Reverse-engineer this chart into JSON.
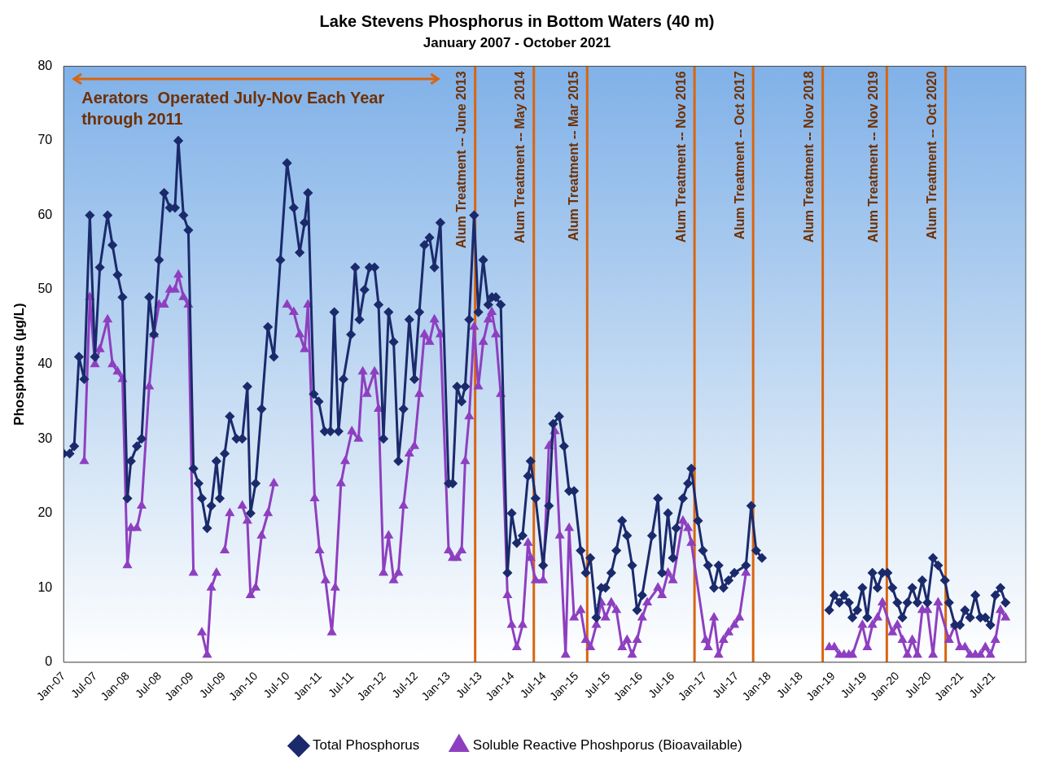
{
  "chart_data": {
    "type": "line",
    "title": "Lake Stevens Phosphorus in Bottom Waters (40 m)",
    "subtitle": "January 2007 - October 2021",
    "ylabel": "Phosphorus (µg/L)",
    "xlim": [
      "2007-01-01",
      "2021-12-31"
    ],
    "xticks": [
      {
        "value": "2007-01",
        "label": "Jan-07"
      },
      {
        "value": "2007-07",
        "label": "Jul-07"
      },
      {
        "value": "2008-01",
        "label": "Jan-08"
      },
      {
        "value": "2008-07",
        "label": "Jul-08"
      },
      {
        "value": "2009-01",
        "label": "Jan-09"
      },
      {
        "value": "2009-07",
        "label": "Jul-09"
      },
      {
        "value": "2010-01",
        "label": "Jan-10"
      },
      {
        "value": "2010-07",
        "label": "Jul-10"
      },
      {
        "value": "2011-01",
        "label": "Jan-11"
      },
      {
        "value": "2011-07",
        "label": "Jul-11"
      },
      {
        "value": "2012-01",
        "label": "Jan-12"
      },
      {
        "value": "2012-07",
        "label": "Jul-12"
      },
      {
        "value": "2013-01",
        "label": "Jan-13"
      },
      {
        "value": "2013-07",
        "label": "Jul-13"
      },
      {
        "value": "2014-01",
        "label": "Jan-14"
      },
      {
        "value": "2014-07",
        "label": "Jul-14"
      },
      {
        "value": "2015-01",
        "label": "Jan-15"
      },
      {
        "value": "2015-07",
        "label": "Jul-15"
      },
      {
        "value": "2016-01",
        "label": "Jan-16"
      },
      {
        "value": "2016-07",
        "label": "Jul-16"
      },
      {
        "value": "2017-01",
        "label": "Jan-17"
      },
      {
        "value": "2017-07",
        "label": "Jul-17"
      },
      {
        "value": "2018-01",
        "label": "Jan-18"
      },
      {
        "value": "2018-07",
        "label": "Jul-18"
      },
      {
        "value": "2019-01",
        "label": "Jan-19"
      },
      {
        "value": "2019-07",
        "label": "Jul-19"
      },
      {
        "value": "2020-01",
        "label": "Jan-20"
      },
      {
        "value": "2020-07",
        "label": "Jul-20"
      },
      {
        "value": "2021-01",
        "label": "Jan-21"
      },
      {
        "value": "2021-07",
        "label": "Jul-21"
      }
    ],
    "ylim": [
      0,
      80
    ],
    "yticks": [
      0,
      10,
      20,
      30,
      40,
      50,
      60,
      70,
      80
    ],
    "grid": false,
    "legend": "bottom",
    "series": [
      {
        "name": "Total Phosphorus",
        "color": "#1b2a6b",
        "marker": "diamond",
        "x": [
          "2007-01-01",
          "2007-02-04",
          "2007-03-02",
          "2007-03-29",
          "2007-04-28",
          "2007-05-30",
          "2007-06-28",
          "2007-07-26",
          "2007-09-08",
          "2007-10-06",
          "2007-11-04",
          "2007-12-02",
          "2007-12-30",
          "2008-01-19",
          "2008-02-22",
          "2008-03-20",
          "2008-05-02",
          "2008-05-29",
          "2008-06-27",
          "2008-07-26",
          "2008-08-28",
          "2008-09-26",
          "2008-10-15",
          "2008-11-13",
          "2008-12-11",
          "2009-01-09",
          "2009-02-07",
          "2009-02-26",
          "2009-03-28",
          "2009-04-21",
          "2009-05-20",
          "2009-06-08",
          "2009-07-06",
          "2009-08-04",
          "2009-09-11",
          "2009-10-14",
          "2009-11-12",
          "2009-11-30",
          "2009-12-29",
          "2010-02-01",
          "2010-03-09",
          "2010-04-12",
          "2010-05-19",
          "2010-06-26",
          "2010-08-03",
          "2010-09-06",
          "2010-10-04",
          "2010-10-23",
          "2010-11-25",
          "2010-12-23",
          "2011-01-26",
          "2011-02-28",
          "2011-03-22",
          "2011-04-15",
          "2011-05-13",
          "2011-06-25",
          "2011-07-19",
          "2011-08-12",
          "2011-09-10",
          "2011-10-08",
          "2011-11-06",
          "2011-11-29",
          "2011-12-27",
          "2012-01-25",
          "2012-02-23",
          "2012-03-21",
          "2012-04-19",
          "2012-05-22",
          "2012-06-20",
          "2012-07-18",
          "2012-08-16",
          "2012-09-14",
          "2012-10-12",
          "2012-11-15",
          "2013-01-01",
          "2013-01-24",
          "2013-02-18",
          "2013-03-16",
          "2013-04-05",
          "2013-04-28",
          "2013-05-26",
          "2013-06-19",
          "2013-07-17",
          "2013-08-15",
          "2013-09-04",
          "2013-09-27",
          "2013-10-25",
          "2013-12-02",
          "2013-12-26",
          "2014-01-24",
          "2014-02-26",
          "2014-03-29",
          "2014-04-13",
          "2014-05-11",
          "2014-06-23",
          "2014-07-26",
          "2014-08-19",
          "2014-09-22",
          "2014-10-20",
          "2014-11-18",
          "2014-12-16",
          "2015-01-23",
          "2015-02-21",
          "2015-03-19",
          "2015-04-22",
          "2015-05-20",
          "2015-06-13",
          "2015-07-16",
          "2015-08-14",
          "2015-09-16",
          "2015-10-14",
          "2015-11-12",
          "2015-12-10",
          "2016-01-08",
          "2016-03-04",
          "2016-04-07",
          "2016-04-30",
          "2016-06-03",
          "2016-07-01",
          "2016-07-20",
          "2016-08-27",
          "2016-09-25",
          "2016-10-14",
          "2016-11-21",
          "2016-12-19",
          "2017-01-17",
          "2017-02-20",
          "2017-03-18",
          "2017-04-15",
          "2017-05-14",
          "2017-06-16",
          "2017-08-21",
          "2017-09-20",
          "2017-10-18",
          "2017-11-20",
          "2018-06-01",
          "2018-12-08",
          "2019-01-06",
          "2019-02-04",
          "2019-03-02",
          "2019-03-30",
          "2019-04-19",
          "2019-05-17",
          "2019-06-15",
          "2019-07-13",
          "2019-08-11",
          "2019-09-09",
          "2019-10-07",
          "2019-11-05",
          "2019-12-03",
          "2019-12-31",
          "2020-01-29",
          "2020-02-26",
          "2020-03-25",
          "2020-04-23",
          "2020-05-21",
          "2020-06-19",
          "2020-07-21",
          "2020-08-19",
          "2020-09-27",
          "2020-10-20",
          "2020-11-23",
          "2020-12-21",
          "2021-01-19",
          "2021-02-17",
          "2021-03-19",
          "2021-04-17",
          "2021-05-15",
          "2021-06-13",
          "2021-07-11",
          "2021-08-09",
          "2021-09-07"
        ],
        "values": [
          28,
          28,
          29,
          41,
          38,
          60,
          41,
          53,
          60,
          56,
          52,
          49,
          22,
          27,
          29,
          30,
          49,
          44,
          54,
          63,
          61,
          61,
          70,
          60,
          58,
          26,
          24,
          22,
          18,
          21,
          27,
          22,
          28,
          33,
          30,
          30,
          37,
          20,
          24,
          34,
          45,
          41,
          54,
          67,
          61,
          55,
          59,
          63,
          36,
          35,
          31,
          31,
          47,
          31,
          38,
          44,
          53,
          46,
          50,
          53,
          53,
          48,
          30,
          47,
          43,
          27,
          34,
          46,
          38,
          47,
          56,
          57,
          53,
          59,
          24,
          24,
          37,
          35,
          37,
          46,
          60,
          47,
          54,
          48,
          49,
          49,
          48,
          12,
          20,
          16,
          17,
          25,
          27,
          22,
          13,
          21,
          32,
          33,
          29,
          23,
          23,
          15,
          12,
          14,
          6,
          10,
          10,
          12,
          15,
          19,
          17,
          13,
          7,
          9,
          17,
          22,
          12,
          20,
          14,
          18,
          22,
          24,
          26,
          19,
          15,
          13,
          10,
          13,
          10,
          11,
          12,
          13,
          21,
          15,
          14,
          null,
          7,
          9,
          8,
          9,
          8,
          6,
          7,
          10,
          6,
          12,
          10,
          12,
          12,
          10,
          8,
          6,
          8,
          10,
          8,
          11,
          8,
          14,
          13,
          11,
          8,
          5,
          5,
          7,
          6,
          9,
          6,
          6,
          5,
          9,
          10,
          8
        ]
      },
      {
        "name": "Soluble Reactive Phoshporus (Bioavailable)",
        "color": "#8e3fc0",
        "marker": "triangle",
        "x": [
          "2007-04-28",
          "2007-05-30",
          "2007-06-28",
          "2007-07-26",
          "2007-09-08",
          "2007-10-06",
          "2007-11-04",
          "2007-12-02",
          "2007-12-30",
          "2008-01-19",
          "2008-02-22",
          "2008-03-20",
          "2008-05-02",
          "2008-05-29",
          "2008-06-27",
          "2008-07-26",
          "2008-08-28",
          "2008-09-26",
          "2008-10-15",
          "2008-11-13",
          "2008-12-11",
          "2009-01-09",
          "2009-02-07",
          "2009-02-26",
          "2009-03-28",
          "2009-04-21",
          "2009-05-20",
          "2009-06-08",
          "2009-07-06",
          "2009-08-04",
          "2009-09-11",
          "2009-10-14",
          "2009-11-12",
          "2009-11-30",
          "2009-12-29",
          "2010-02-01",
          "2010-03-09",
          "2010-04-12",
          "2010-05-19",
          "2010-06-26",
          "2010-08-03",
          "2010-09-06",
          "2010-10-04",
          "2010-10-23",
          "2010-11-30",
          "2010-12-28",
          "2011-01-31",
          "2011-03-08",
          "2011-03-27",
          "2011-04-29",
          "2011-05-23",
          "2011-06-30",
          "2011-08-07",
          "2011-08-31",
          "2011-09-24",
          "2011-11-06",
          "2011-11-29",
          "2011-12-27",
          "2012-01-25",
          "2012-02-23",
          "2012-03-21",
          "2012-04-19",
          "2012-05-22",
          "2012-06-20",
          "2012-07-18",
          "2012-08-16",
          "2012-09-14",
          "2012-10-12",
          "2012-11-15",
          "2013-01-01",
          "2013-01-24",
          "2013-02-18",
          "2013-03-16",
          "2013-04-05",
          "2013-04-28",
          "2013-05-26",
          "2013-06-19",
          "2013-07-17",
          "2013-08-15",
          "2013-09-04",
          "2013-09-27",
          "2013-10-25",
          "2013-12-02",
          "2013-12-26",
          "2014-01-24",
          "2014-02-26",
          "2014-03-29",
          "2014-04-13",
          "2014-05-11",
          "2014-06-23",
          "2014-07-26",
          "2014-08-28",
          "2014-09-26",
          "2014-10-29",
          "2014-11-18",
          "2014-12-16",
          "2015-01-23",
          "2015-02-21",
          "2015-03-19",
          "2015-04-22",
          "2015-05-20",
          "2015-06-13",
          "2015-07-16",
          "2015-08-14",
          "2015-09-16",
          "2015-10-14",
          "2015-11-12",
          "2015-12-10",
          "2016-01-08",
          "2016-02-06",
          "2016-04-07",
          "2016-04-30",
          "2016-06-03",
          "2016-07-01",
          "2016-08-27",
          "2016-09-25",
          "2016-10-14",
          "2017-01-03",
          "2017-01-17",
          "2017-02-20",
          "2017-03-18",
          "2017-04-15",
          "2017-05-14",
          "2017-06-16",
          "2017-07-14",
          "2017-08-21",
          "2018-06-01",
          "2018-12-08",
          "2019-01-06",
          "2019-02-04",
          "2019-03-02",
          "2019-03-30",
          "2019-04-19",
          "2019-06-15",
          "2019-07-13",
          "2019-08-11",
          "2019-09-09",
          "2019-10-07",
          "2019-12-03",
          "2019-12-31",
          "2020-01-29",
          "2020-02-26",
          "2020-03-25",
          "2020-04-23",
          "2020-05-21",
          "2020-06-19",
          "2020-07-21",
          "2020-08-19",
          "2020-10-20",
          "2020-11-23",
          "2020-12-21",
          "2021-01-19",
          "2021-02-17",
          "2021-03-19",
          "2021-04-17",
          "2021-05-15",
          "2021-06-13",
          "2021-07-11",
          "2021-08-09",
          "2021-09-07"
        ],
        "values": [
          27,
          49,
          40,
          42,
          46,
          40,
          39,
          38,
          13,
          18,
          18,
          21,
          37,
          44,
          48,
          48,
          50,
          50,
          52,
          49,
          48,
          12,
          null,
          4,
          1,
          10,
          12,
          null,
          15,
          20,
          null,
          21,
          19,
          9,
          10,
          17,
          20,
          24,
          null,
          48,
          47,
          44,
          42,
          48,
          22,
          15,
          11,
          4,
          10,
          24,
          27,
          31,
          30,
          39,
          36,
          39,
          34,
          12,
          17,
          11,
          12,
          21,
          28,
          29,
          36,
          44,
          43,
          46,
          44,
          15,
          14,
          14,
          15,
          27,
          33,
          45,
          37,
          43,
          46,
          47,
          44,
          36,
          9,
          5,
          2,
          5,
          16,
          14,
          11,
          11,
          29,
          31,
          17,
          1,
          18,
          6,
          7,
          3,
          2,
          5,
          8,
          6,
          8,
          7,
          2,
          3,
          1,
          3,
          6,
          8,
          10,
          9,
          12,
          11,
          19,
          18,
          16,
          3,
          2,
          6,
          1,
          3,
          4,
          5,
          6,
          12,
          null,
          2,
          2,
          1,
          1,
          1,
          1,
          5,
          2,
          5,
          6,
          8,
          4,
          5,
          3,
          1,
          3,
          1,
          7,
          7,
          1,
          8,
          3,
          5,
          2,
          2,
          1,
          1,
          1,
          2,
          1,
          3,
          7,
          6
        ]
      }
    ],
    "ref_lines": [
      {
        "axis": "x",
        "value": "2013-06",
        "label": "Alum Treatment -- June 2013"
      },
      {
        "axis": "x",
        "value": "2014-05",
        "label": "Alum Treatment -- May 2014"
      },
      {
        "axis": "x",
        "value": "2015-03",
        "label": "Alum Treatment -- Mar 2015"
      },
      {
        "axis": "x",
        "value": "2016-11",
        "label": "Alum Treatment -- Nov 2016"
      },
      {
        "axis": "x",
        "value": "2017-10",
        "label": "Alum Treatment -- Oct 2017"
      },
      {
        "axis": "x",
        "value": "2018-11",
        "label": "Alum Treatment -- Nov 2018"
      },
      {
        "axis": "x",
        "value": "2019-11",
        "label": "Alum Treatment -- Nov 2019"
      },
      {
        "axis": "x",
        "value": "2020-10",
        "label": "Alum Treatment -- Oct 2020"
      }
    ],
    "annotations": [
      "Aerators  Operated July-Nov Each Year through 2011"
    ]
  }
}
